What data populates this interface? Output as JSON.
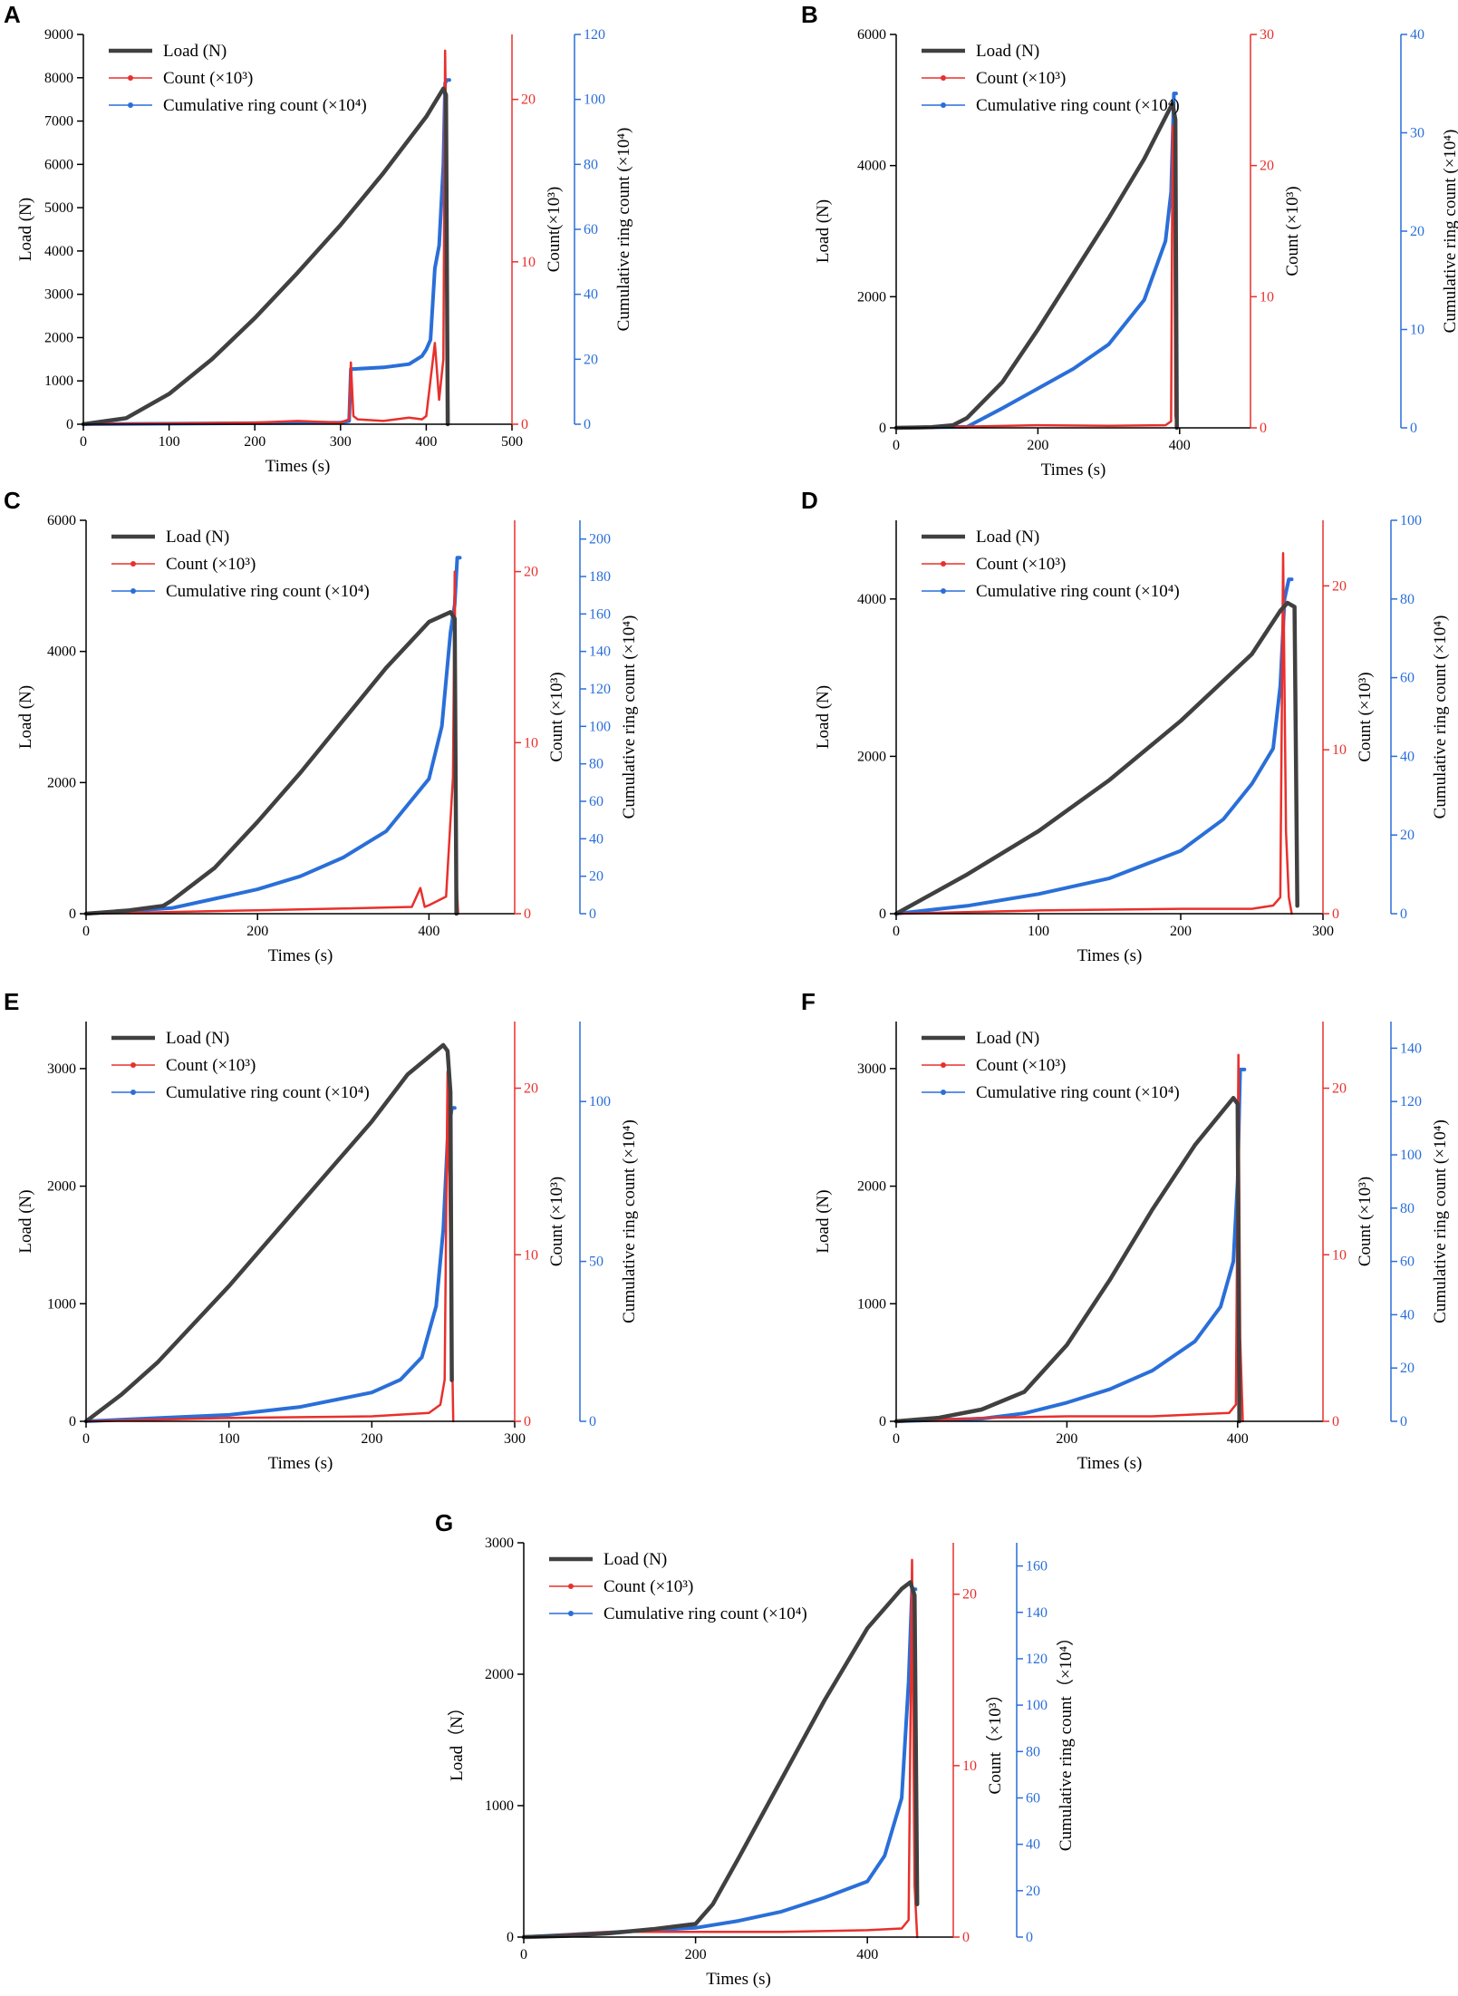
{
  "figure": {
    "colors": {
      "load": "#404040",
      "count": "#e8302c",
      "cum": "#2a6fd8",
      "axis": "#000000"
    }
  },
  "chart_data": [
    {
      "type": "line",
      "panel": "A",
      "xlabel": "Times (s)",
      "ylabel_left": "Load (N)",
      "ylabel_right1": "Count(×10³)",
      "ylabel_right2": "Cumulative ring count (×10⁴)",
      "xlim": [
        0,
        500
      ],
      "x_ticks": [
        0,
        100,
        200,
        300,
        400,
        500
      ],
      "y_left_lim": [
        0,
        9000
      ],
      "y_left_ticks": [
        0,
        1000,
        2000,
        3000,
        4000,
        5000,
        6000,
        7000,
        8000,
        9000
      ],
      "y_right1_lim": [
        0,
        24
      ],
      "y_right1_ticks": [
        0,
        10,
        20
      ],
      "y_right2_lim": [
        0,
        120
      ],
      "y_right2_ticks": [
        0,
        20,
        40,
        60,
        80,
        100,
        120
      ],
      "legend": [
        "Load (N)",
        "Count (×10³)",
        "Cumulative ring count (×10⁴)"
      ],
      "series": [
        {
          "name": "Load (N)",
          "axis": "left",
          "x": [
            0,
            50,
            100,
            150,
            200,
            250,
            300,
            350,
            400,
            420,
            423,
            425
          ],
          "y": [
            0,
            140,
            700,
            1500,
            2450,
            3500,
            4600,
            5800,
            7100,
            7750,
            7600,
            0
          ]
        },
        {
          "name": "Count (×10³)",
          "axis": "right1",
          "x": [
            0,
            100,
            200,
            250,
            300,
            310,
            312,
            315,
            320,
            350,
            380,
            395,
            400,
            410,
            415,
            418,
            420,
            422,
            424,
            426
          ],
          "y": [
            0,
            0.05,
            0.1,
            0.2,
            0.1,
            0.3,
            3.8,
            0.5,
            0.3,
            0.2,
            0.4,
            0.3,
            0.5,
            5,
            1.5,
            3,
            4,
            23,
            15,
            0
          ]
        },
        {
          "name": "Cumulative ring count (×10⁴)",
          "axis": "right2",
          "x": [
            0,
            300,
            310,
            312,
            315,
            350,
            380,
            395,
            400,
            405,
            410,
            415,
            420,
            422,
            424,
            427
          ],
          "y": [
            0,
            0.5,
            1,
            17,
            17,
            17.5,
            18.5,
            21,
            23,
            26,
            48,
            55,
            80,
            105,
            106,
            106
          ]
        }
      ]
    },
    {
      "type": "line",
      "panel": "B",
      "xlabel": "Times (s)",
      "ylabel_left": "Load (N)",
      "ylabel_right1": "Count (×10³)",
      "ylabel_right2": "Cumulative ring count (×10⁴)",
      "xlim": [
        0,
        500
      ],
      "x_ticks": [
        0,
        200,
        400
      ],
      "y_left_lim": [
        0,
        6000
      ],
      "y_left_ticks": [
        0,
        2000,
        4000,
        6000
      ],
      "y_right1_lim": [
        0,
        30
      ],
      "y_right1_ticks": [
        0,
        10,
        20,
        30
      ],
      "y_right2_lim": [
        0,
        40
      ],
      "y_right2_ticks": [
        0,
        10,
        20,
        30,
        40
      ],
      "legend": [
        "Load (N)",
        "Count (×10³)",
        "Cumulative ring count (×10⁴)"
      ],
      "series": [
        {
          "name": "Load (N)",
          "axis": "left",
          "x": [
            0,
            50,
            80,
            100,
            150,
            200,
            250,
            300,
            350,
            390,
            394,
            396
          ],
          "y": [
            0,
            10,
            40,
            150,
            700,
            1500,
            2350,
            3200,
            4100,
            4950,
            4700,
            0
          ]
        },
        {
          "name": "Count (×10³)",
          "axis": "right1",
          "x": [
            0,
            100,
            200,
            300,
            380,
            388,
            390,
            392,
            394,
            396
          ],
          "y": [
            0,
            0.1,
            0.2,
            0.15,
            0.2,
            0.5,
            23,
            22,
            1,
            0
          ]
        },
        {
          "name": "Cumulative ring count (×10⁴)",
          "axis": "right2",
          "x": [
            0,
            100,
            150,
            200,
            250,
            300,
            350,
            380,
            388,
            392,
            395
          ],
          "y": [
            0,
            0.1,
            2,
            4,
            6,
            8.5,
            13,
            19,
            24,
            34,
            34
          ]
        }
      ]
    },
    {
      "type": "line",
      "panel": "C",
      "xlabel": "Times (s)",
      "ylabel_left": "Load (N)",
      "ylabel_right1": "Count (×10³)",
      "ylabel_right2": "Cumulative ring count (×10⁴)",
      "xlim": [
        0,
        500
      ],
      "x_ticks": [
        0,
        200,
        400
      ],
      "y_left_lim": [
        0,
        6000
      ],
      "y_left_ticks": [
        0,
        2000,
        4000,
        6000
      ],
      "y_right1_lim": [
        0,
        23
      ],
      "y_right1_ticks": [
        0,
        10,
        20
      ],
      "y_right2_lim": [
        0,
        210
      ],
      "y_right2_ticks": [
        0,
        20,
        40,
        60,
        80,
        100,
        120,
        140,
        160,
        180,
        200
      ],
      "legend": [
        "Load (N)",
        "Count (×10³)",
        "Cumulative ring count (×10⁴)"
      ],
      "series": [
        {
          "name": "Load (N)",
          "axis": "left",
          "x": [
            0,
            50,
            90,
            100,
            150,
            200,
            250,
            300,
            350,
            400,
            425,
            430,
            432
          ],
          "y": [
            0,
            50,
            120,
            200,
            700,
            1400,
            2150,
            2950,
            3750,
            4450,
            4600,
            4500,
            0
          ]
        },
        {
          "name": "Count (×10³)",
          "axis": "right1",
          "x": [
            0,
            100,
            200,
            300,
            380,
            390,
            395,
            400,
            420,
            428,
            430,
            432,
            434
          ],
          "y": [
            0,
            0.1,
            0.2,
            0.3,
            0.4,
            1.5,
            0.4,
            0.5,
            1,
            8,
            20,
            2,
            0
          ]
        },
        {
          "name": "Cumulative ring count (×10⁴)",
          "axis": "right2",
          "x": [
            0,
            100,
            150,
            200,
            250,
            300,
            350,
            400,
            415,
            425,
            430,
            433,
            436
          ],
          "y": [
            0,
            3,
            8,
            13,
            20,
            30,
            44,
            72,
            100,
            150,
            165,
            190,
            190
          ]
        }
      ]
    },
    {
      "type": "line",
      "panel": "D",
      "xlabel": "Times (s)",
      "ylabel_left": "Load (N)",
      "ylabel_right1": "Count (×10³)",
      "ylabel_right2": "Cumulative ring count (×10⁴)",
      "xlim": [
        0,
        300
      ],
      "x_ticks": [
        0,
        100,
        200,
        300
      ],
      "y_left_lim": [
        0,
        5000
      ],
      "y_left_ticks": [
        0,
        2000,
        4000
      ],
      "y_right1_lim": [
        0,
        24
      ],
      "y_right1_ticks": [
        0,
        10,
        20
      ],
      "y_right2_lim": [
        0,
        100
      ],
      "y_right2_ticks": [
        0,
        20,
        40,
        60,
        80,
        100
      ],
      "legend": [
        "Load (N)",
        "Count (×10³)",
        "Cumulative ring count (×10⁴)"
      ],
      "series": [
        {
          "name": "Load (N)",
          "axis": "left",
          "x": [
            0,
            25,
            50,
            100,
            150,
            200,
            250,
            270,
            275,
            280,
            282
          ],
          "y": [
            0,
            250,
            500,
            1050,
            1700,
            2450,
            3300,
            3850,
            3950,
            3900,
            100
          ]
        },
        {
          "name": "Count (×10³)",
          "axis": "right1",
          "x": [
            0,
            100,
            200,
            250,
            265,
            270,
            272,
            274,
            276,
            278
          ],
          "y": [
            0,
            0.2,
            0.3,
            0.3,
            0.5,
            1,
            22,
            5,
            1,
            0
          ]
        },
        {
          "name": "Cumulative ring count (×10⁴)",
          "axis": "right2",
          "x": [
            0,
            50,
            100,
            150,
            200,
            230,
            250,
            265,
            270,
            273,
            276,
            278
          ],
          "y": [
            0,
            2,
            5,
            9,
            16,
            24,
            33,
            42,
            58,
            80,
            85,
            85
          ]
        }
      ]
    },
    {
      "type": "line",
      "panel": "E",
      "xlabel": "Times (s)",
      "ylabel_left": "Load (N)",
      "ylabel_right1": "Count (×10³)",
      "ylabel_right2": "Cumulative ring count (×10⁴)",
      "xlim": [
        0,
        300
      ],
      "x_ticks": [
        0,
        100,
        200,
        300
      ],
      "y_left_lim": [
        0,
        3400
      ],
      "y_left_ticks": [
        0,
        1000,
        2000,
        3000
      ],
      "y_right1_lim": [
        0,
        24
      ],
      "y_right1_ticks": [
        0,
        10,
        20
      ],
      "y_right2_lim": [
        0,
        125
      ],
      "y_right2_ticks": [
        0,
        50,
        100
      ],
      "legend": [
        "Load (N)",
        "Count (×10³)",
        "Cumulative ring count (×10⁴)"
      ],
      "series": [
        {
          "name": "Load (N)",
          "axis": "left",
          "x": [
            0,
            25,
            50,
            100,
            150,
            200,
            225,
            240,
            250,
            253,
            255,
            256
          ],
          "y": [
            0,
            230,
            500,
            1150,
            1850,
            2550,
            2950,
            3100,
            3200,
            3150,
            2800,
            350
          ]
        },
        {
          "name": "Count (×10³)",
          "axis": "right1",
          "x": [
            0,
            100,
            200,
            240,
            248,
            251,
            253,
            255,
            257
          ],
          "y": [
            0,
            0.2,
            0.3,
            0.5,
            1,
            2.5,
            21,
            10,
            0
          ]
        },
        {
          "name": "Cumulative ring count (×10⁴)",
          "axis": "right2",
          "x": [
            0,
            100,
            150,
            200,
            220,
            235,
            245,
            250,
            253,
            256,
            258
          ],
          "y": [
            0,
            2,
            4.5,
            9,
            13,
            20,
            36,
            60,
            88,
            98,
            98
          ]
        }
      ]
    },
    {
      "type": "line",
      "panel": "F",
      "xlabel": "Times (s)",
      "ylabel_left": "Load (N)",
      "ylabel_right1": "Count (×10³)",
      "ylabel_right2": "Cumulative ring count (×10⁴)",
      "xlim": [
        0,
        500
      ],
      "x_ticks": [
        0,
        200,
        400
      ],
      "y_left_lim": [
        0,
        3400
      ],
      "y_left_ticks": [
        0,
        1000,
        2000,
        3000
      ],
      "y_right1_lim": [
        0,
        24
      ],
      "y_right1_ticks": [
        0,
        10,
        20
      ],
      "y_right2_lim": [
        0,
        150
      ],
      "y_right2_ticks": [
        0,
        20,
        40,
        60,
        80,
        100,
        120,
        140
      ],
      "legend": [
        "Load (N)",
        "Count (×10³)",
        "Cumulative ring count (×10⁴)"
      ],
      "series": [
        {
          "name": "Load (N)",
          "axis": "left",
          "x": [
            0,
            50,
            100,
            150,
            200,
            250,
            300,
            350,
            395,
            400,
            402
          ],
          "y": [
            0,
            30,
            100,
            250,
            650,
            1200,
            1800,
            2350,
            2750,
            2700,
            0
          ]
        },
        {
          "name": "Count (×10³)",
          "axis": "right1",
          "x": [
            0,
            100,
            200,
            300,
            390,
            398,
            401,
            403,
            406
          ],
          "y": [
            0,
            0.2,
            0.3,
            0.3,
            0.5,
            1,
            22,
            5,
            0
          ]
        },
        {
          "name": "Cumulative ring count (×10⁴)",
          "axis": "right2",
          "x": [
            0,
            100,
            150,
            200,
            250,
            300,
            350,
            380,
            395,
            400,
            403,
            408
          ],
          "y": [
            0,
            1,
            3,
            7,
            12,
            19,
            30,
            43,
            60,
            90,
            132,
            132
          ]
        }
      ]
    },
    {
      "type": "line",
      "panel": "G",
      "xlabel": "Times (s)",
      "ylabel_left": "Load（N）",
      "ylabel_right1": "Count（×10³）",
      "ylabel_right2": "Cumulative ring count（×10⁴）",
      "xlim": [
        0,
        500
      ],
      "x_ticks": [
        0,
        200,
        400
      ],
      "y_left_lim": [
        0,
        3000
      ],
      "y_left_ticks": [
        0,
        1000,
        2000,
        3000
      ],
      "y_right1_lim": [
        0,
        23
      ],
      "y_right1_ticks": [
        0,
        10,
        20
      ],
      "y_right2_lim": [
        0,
        170
      ],
      "y_right2_ticks": [
        0,
        20,
        40,
        60,
        80,
        100,
        120,
        140,
        160
      ],
      "legend": [
        "Load (N)",
        "Count (×10³)",
        "Cumulative ring count (×10⁴)"
      ],
      "series": [
        {
          "name": "Load (N)",
          "axis": "left",
          "x": [
            0,
            50,
            100,
            150,
            200,
            220,
            250,
            300,
            350,
            400,
            440,
            450,
            455,
            458
          ],
          "y": [
            0,
            10,
            30,
            60,
            100,
            250,
            600,
            1200,
            1800,
            2350,
            2650,
            2700,
            2600,
            250
          ]
        },
        {
          "name": "Count (×10³)",
          "axis": "right1",
          "x": [
            0,
            100,
            200,
            300,
            400,
            440,
            448,
            452,
            455,
            458
          ],
          "y": [
            0,
            0.3,
            0.3,
            0.3,
            0.4,
            0.5,
            1,
            22,
            3,
            0
          ]
        },
        {
          "name": "Cumulative ring count (×10⁴)",
          "axis": "right2",
          "x": [
            0,
            100,
            200,
            250,
            300,
            350,
            400,
            420,
            440,
            448,
            452,
            456
          ],
          "y": [
            0,
            2,
            4,
            7,
            11,
            17,
            24,
            35,
            60,
            110,
            150,
            150
          ]
        }
      ]
    }
  ]
}
